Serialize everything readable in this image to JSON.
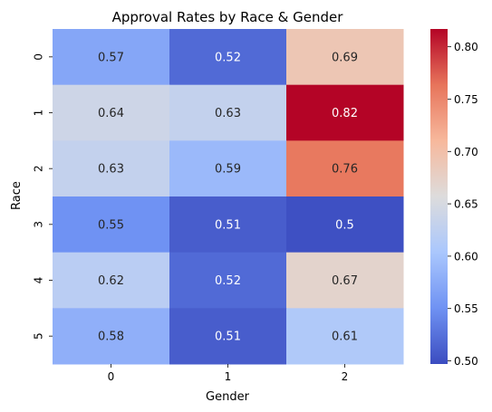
{
  "chart_data": {
    "type": "heatmap",
    "title": "Approval Rates by Race & Gender",
    "xlabel": "Gender",
    "ylabel": "Race",
    "x_categories": [
      "0",
      "1",
      "2"
    ],
    "y_categories": [
      "0",
      "1",
      "2",
      "3",
      "4",
      "5"
    ],
    "values": [
      [
        0.57,
        0.52,
        0.69
      ],
      [
        0.64,
        0.63,
        0.82
      ],
      [
        0.63,
        0.59,
        0.76
      ],
      [
        0.55,
        0.51,
        0.5
      ],
      [
        0.62,
        0.52,
        0.67
      ],
      [
        0.58,
        0.51,
        0.61
      ]
    ],
    "cell_labels": [
      [
        "0.57",
        "0.52",
        "0.69"
      ],
      [
        "0.64",
        "0.63",
        "0.82"
      ],
      [
        "0.63",
        "0.59",
        "0.76"
      ],
      [
        "0.55",
        "0.51",
        "0.5"
      ],
      [
        "0.62",
        "0.52",
        "0.67"
      ],
      [
        "0.58",
        "0.51",
        "0.61"
      ]
    ],
    "colormap": "coolwarm",
    "colormap_stops": [
      "#3b4cc0",
      "#6f92f3",
      "#aac7fd",
      "#dddcdc",
      "#f7b89c",
      "#e7745b",
      "#b40426"
    ],
    "vmin": 0.497,
    "vmax": 0.817,
    "colorbar_ticks": [
      "0.50",
      "0.55",
      "0.60",
      "0.65",
      "0.70",
      "0.75",
      "0.80"
    ],
    "colorbar_placement": "right"
  }
}
